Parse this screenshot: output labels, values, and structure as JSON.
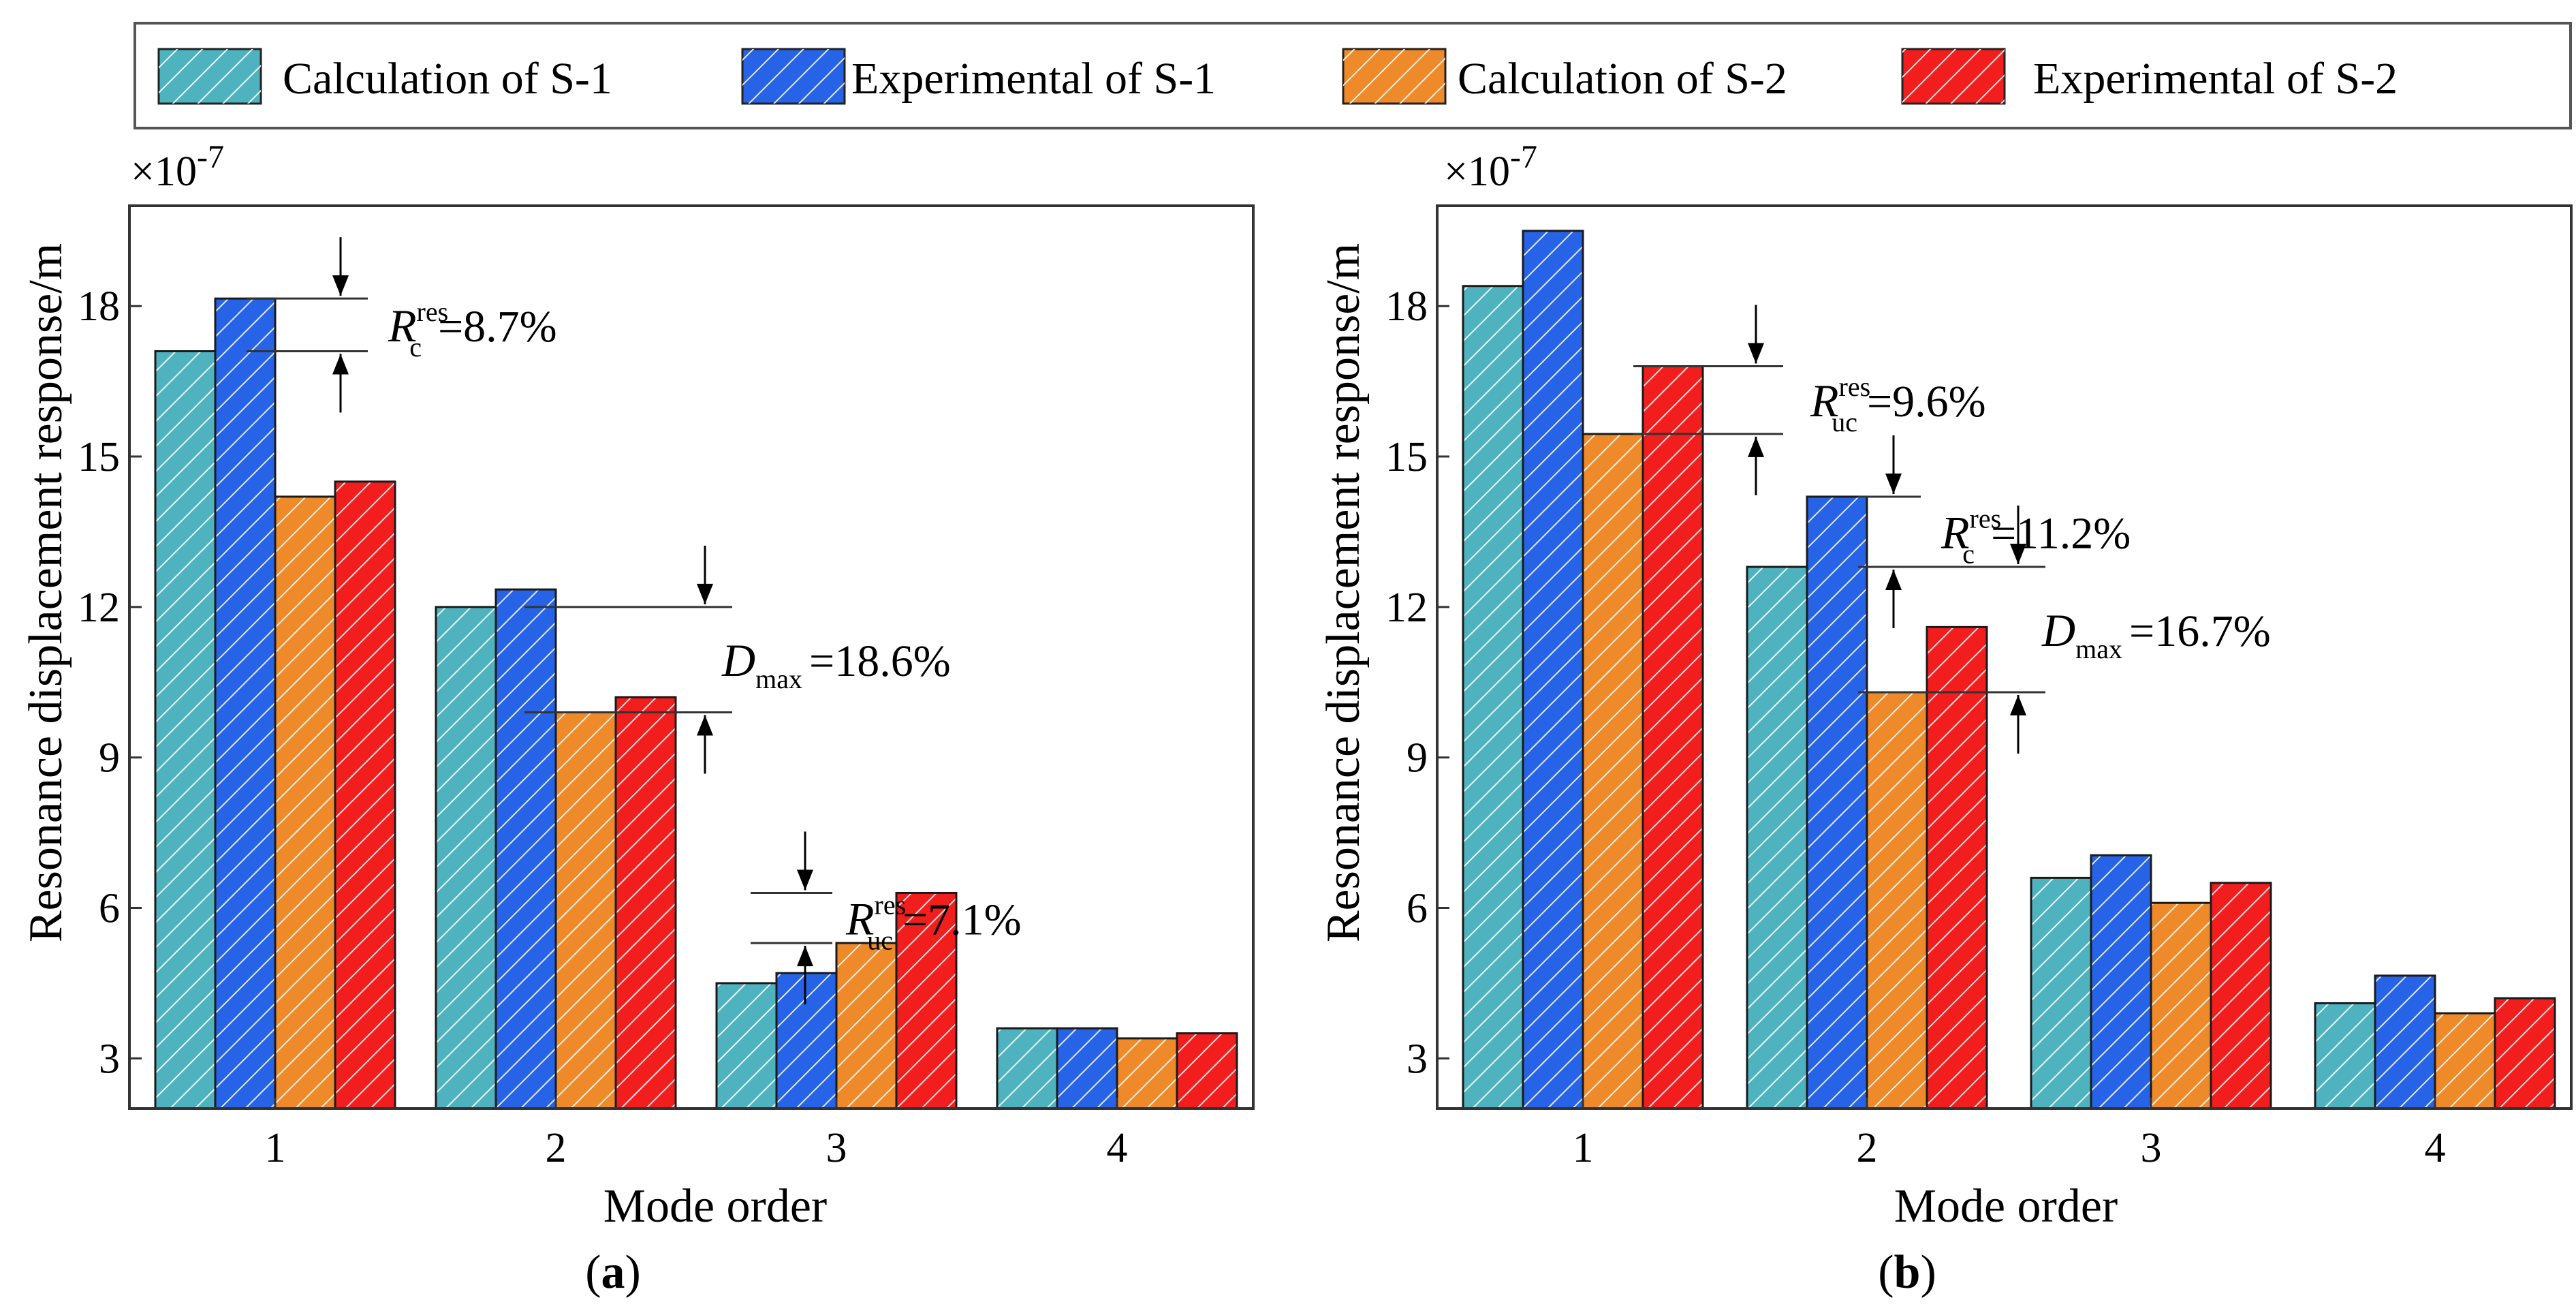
{
  "chart_data": {
    "type": "bar",
    "legend": {
      "placement": "top",
      "entries": [
        {
          "label": "Calculation of S-1",
          "color": "#4fb3bf"
        },
        {
          "label": "Experimental of S-1",
          "color": "#2663e6"
        },
        {
          "label": "Calculation of S-2",
          "color": "#ee8a2a"
        },
        {
          "label": "Experimental of S-2",
          "color": "#f21d1d"
        }
      ]
    },
    "panels": [
      {
        "id": "a",
        "label_open": "(",
        "label_letter": "a",
        "label_close": ")",
        "xlabel": "Mode order",
        "ylabel": "Resonance displacement response/m",
        "y_multiplier": "×10",
        "y_exponent": "-7",
        "ylim": [
          2,
          20
        ],
        "yticks": [
          3,
          6,
          9,
          12,
          15,
          18
        ],
        "categories": [
          "1",
          "2",
          "3",
          "4"
        ],
        "series": [
          {
            "name": "Calculation of S-1",
            "values": [
              17.1,
              12.0,
              4.5,
              3.6
            ]
          },
          {
            "name": "Experimental of S-1",
            "values": [
              18.15,
              12.35,
              4.7,
              3.6
            ]
          },
          {
            "name": "Calculation of S-2",
            "values": [
              14.2,
              9.9,
              5.3,
              3.4
            ]
          },
          {
            "name": "Experimental of S-2",
            "values": [
              14.5,
              10.2,
              6.3,
              3.5
            ]
          }
        ],
        "annotations": [
          {
            "symbol": "R",
            "sub": "c",
            "sup": "res",
            "value": "=8.7%",
            "y_top": 18.15,
            "y_bottom": 17.1
          },
          {
            "symbol": "D",
            "sub": "max",
            "sup": "",
            "value": "=18.6%",
            "y_top": 12.0,
            "y_bottom": 9.9
          },
          {
            "symbol": "R",
            "sub": "uc",
            "sup": "res",
            "value": "=7.1%",
            "y_top": 6.3,
            "y_bottom": 5.3
          }
        ]
      },
      {
        "id": "b",
        "label_open": "(",
        "label_letter": "b",
        "label_close": ")",
        "xlabel": "Mode order",
        "ylabel": "Resonance displacement response/m",
        "y_multiplier": "×10",
        "y_exponent": "-7",
        "ylim": [
          2,
          20
        ],
        "yticks": [
          3,
          6,
          9,
          12,
          15,
          18
        ],
        "categories": [
          "1",
          "2",
          "3",
          "4"
        ],
        "series": [
          {
            "name": "Calculation of S-1",
            "values": [
              18.4,
              12.8,
              6.6,
              4.1
            ]
          },
          {
            "name": "Experimental of S-1",
            "values": [
              19.5,
              14.2,
              7.05,
              4.65
            ]
          },
          {
            "name": "Calculation of S-2",
            "values": [
              15.45,
              10.3,
              6.1,
              3.9
            ]
          },
          {
            "name": "Experimental of S-2",
            "values": [
              16.8,
              11.6,
              6.5,
              4.2
            ]
          }
        ],
        "annotations": [
          {
            "symbol": "R",
            "sub": "uc",
            "sup": "res",
            "value": "=9.6%",
            "y_top": 16.8,
            "y_bottom": 15.45
          },
          {
            "symbol": "R",
            "sub": "c",
            "sup": "res",
            "value": "=11.2%",
            "y_top": 14.2,
            "y_bottom": 12.8
          },
          {
            "symbol": "D",
            "sub": "max",
            "sup": "",
            "value": "=16.7%",
            "y_top": 12.8,
            "y_bottom": 10.3
          }
        ]
      }
    ]
  }
}
